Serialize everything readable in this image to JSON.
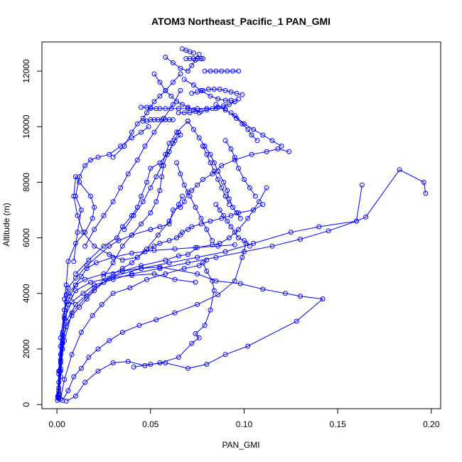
{
  "chart_data": {
    "type": "line",
    "title": "ATOM3 Northeast_Pacific_1 PAN_GMI",
    "xlabel": "PAN_GMI",
    "ylabel": "Altitude (m)",
    "xlim": [
      -0.008,
      0.205
    ],
    "ylim": [
      -150,
      13050
    ],
    "xticks": [
      "0.00",
      "0.05",
      "0.10",
      "0.15",
      "0.20"
    ],
    "xtick_values": [
      0.0,
      0.05,
      0.1,
      0.15,
      0.2
    ],
    "yticks": [
      "0",
      "2000",
      "4000",
      "6000",
      "8000",
      "10000",
      "12000"
    ],
    "ytick_values": [
      0,
      2000,
      4000,
      6000,
      8000,
      10000,
      12000
    ],
    "grid": false,
    "legend": "none",
    "marker": "open-circle",
    "color": "#0000ff",
    "series": [
      {
        "x": [
          0.001,
          0.0005,
          0.001,
          0.001,
          0.0015,
          0.002,
          0.003,
          0.005,
          0.008,
          0.012,
          0.016,
          0.02,
          0.025,
          0.03,
          0.035,
          0.04,
          0.043,
          0.047,
          0.05,
          0.052,
          0.055,
          0.06,
          0.064,
          0.066,
          0.067,
          0.07,
          0.072,
          0.077,
          0.082,
          0.088,
          0.093,
          0.097,
          0.105,
          0.11
        ],
        "y": [
          200,
          300,
          500,
          800,
          1200,
          1800,
          2300,
          2800,
          3200,
          3500,
          3800,
          4100,
          4400,
          4700,
          4900,
          5100,
          5300,
          5500,
          5600,
          5700,
          5800,
          5900,
          6000,
          6100,
          6200,
          6300,
          6400,
          6500,
          6600,
          6700,
          6800,
          6900,
          7000,
          7200
        ]
      },
      {
        "x": [
          0.001,
          0.002,
          0.003,
          0.005,
          0.01,
          0.02,
          0.03,
          0.045,
          0.06,
          0.075,
          0.09,
          0.105,
          0.125,
          0.14,
          0.16,
          0.165,
          0.183,
          0.196,
          0.197
        ],
        "y": [
          250,
          1000,
          2000,
          3000,
          3600,
          4200,
          4600,
          4900,
          5100,
          5300,
          5500,
          5800,
          6200,
          6400,
          6600,
          6750,
          8450,
          8000,
          7600
        ]
      },
      {
        "x": [
          0.0005,
          0.001,
          0.002,
          0.004,
          0.008,
          0.014,
          0.02,
          0.03,
          0.04,
          0.055,
          0.07,
          0.085,
          0.1,
          0.115,
          0.13,
          0.145,
          0.16,
          0.163
        ],
        "y": [
          300,
          1100,
          2100,
          3100,
          3700,
          4000,
          4300,
          4500,
          4700,
          4900,
          5100,
          5300,
          5500,
          5700,
          5950,
          6250,
          6600,
          7900
        ]
      },
      {
        "x": [
          0.001,
          0.002,
          0.004,
          0.008,
          0.016,
          0.025,
          0.035,
          0.045,
          0.058,
          0.065,
          0.07,
          0.075,
          0.083,
          0.087,
          0.092,
          0.097,
          0.102,
          0.108,
          0.112
        ],
        "y": [
          350,
          1300,
          2300,
          3300,
          3900,
          4400,
          4800,
          5000,
          5200,
          5350,
          5400,
          5650,
          5750,
          5800,
          6000,
          6300,
          6700,
          7300,
          7800
        ]
      },
      {
        "x": [
          0.001,
          0.002,
          0.003,
          0.004,
          0.005,
          0.006,
          0.01,
          0.016,
          0.028,
          0.033,
          0.04,
          0.05,
          0.055,
          0.06,
          0.062,
          0.066,
          0.068,
          0.07,
          0.072,
          0.075,
          0.078,
          0.083,
          0.088,
          0.095,
          0.104,
          0.112,
          0.118,
          0.124
        ],
        "y": [
          400,
          1500,
          2500,
          3400,
          3950,
          4200,
          4550,
          5000,
          5700,
          5900,
          6100,
          6300,
          6400,
          6500,
          7000,
          7100,
          7300,
          7650,
          7700,
          7900,
          8100,
          8300,
          8600,
          8800,
          9000,
          9100,
          9200,
          9100
        ]
      },
      {
        "x": [
          0.0003,
          0.001,
          0.002,
          0.003,
          0.004,
          0.005,
          0.006,
          0.01,
          0.015,
          0.025,
          0.035,
          0.045,
          0.055,
          0.075,
          0.085,
          0.098,
          0.11,
          0.122,
          0.13,
          0.142,
          0.128,
          0.102,
          0.09,
          0.08,
          0.07,
          0.058,
          0.05,
          0.041
        ],
        "y": [
          150,
          350,
          1200,
          2200,
          3200,
          3700,
          4000,
          4300,
          4500,
          4700,
          4800,
          4900,
          4950,
          4700,
          4450,
          4350,
          4150,
          4000,
          3900,
          3800,
          3000,
          2100,
          1800,
          1450,
          1300,
          1500,
          1450,
          1350
        ]
      },
      {
        "x": [
          0.0005,
          0.001,
          0.002,
          0.003,
          0.006,
          0.01,
          0.018,
          0.028,
          0.04,
          0.052,
          0.063,
          0.074
        ],
        "y": [
          250,
          600,
          1600,
          2600,
          3600,
          4100,
          4400,
          4550,
          4650,
          4700,
          4500,
          4400
        ]
      },
      {
        "x": [
          0.005,
          0.01,
          0.015,
          0.022,
          0.03,
          0.038,
          0.047,
          0.055,
          0.065,
          0.072,
          0.076,
          0.074,
          0.079,
          0.082,
          0.084,
          0.083,
          0.08,
          0.078
        ],
        "y": [
          120,
          300,
          800,
          1200,
          1500,
          1550,
          1400,
          1500,
          1700,
          2200,
          2400,
          2550,
          2850,
          3400,
          4100,
          4450,
          4800,
          5100
        ]
      },
      {
        "x": [
          0.002,
          0.004,
          0.008,
          0.013,
          0.019,
          0.024,
          0.03,
          0.039,
          0.048,
          0.058,
          0.068,
          0.076,
          0.08
        ],
        "y": [
          200,
          900,
          1800,
          2600,
          3200,
          3600,
          4000,
          4200,
          4500,
          4700,
          4900,
          5000,
          5200
        ]
      },
      {
        "x": [
          0.003,
          0.006,
          0.009,
          0.013,
          0.017,
          0.022,
          0.028,
          0.035,
          0.044,
          0.053,
          0.063,
          0.075,
          0.086,
          0.095,
          0.099,
          0.101
        ],
        "y": [
          150,
          500,
          1000,
          1300,
          1700,
          2000,
          2300,
          2600,
          2850,
          3050,
          3300,
          3600,
          3950,
          4450,
          5300,
          5800
        ]
      },
      {
        "x": [
          0.0005,
          0.001,
          0.002,
          0.004,
          0.007,
          0.01,
          0.013,
          0.016,
          0.021,
          0.03,
          0.04,
          0.052,
          0.063,
          0.074,
          0.086,
          0.095
        ],
        "y": [
          300,
          1200,
          2400,
          3400,
          3900,
          4300,
          4600,
          4900,
          5100,
          5300,
          5450,
          5550,
          5600,
          5650,
          5700,
          5750
        ]
      },
      {
        "x": [
          0.004,
          0.005,
          0.006,
          0.01,
          0.015,
          0.019,
          0.02,
          0.018,
          0.012,
          0.01,
          0.009,
          0.011,
          0.014,
          0.02,
          0.028,
          0.035,
          0.043,
          0.048,
          0.054,
          0.06,
          0.065,
          0.067
        ],
        "y": [
          3800,
          4300,
          5150,
          5800,
          6200,
          6700,
          7100,
          7500,
          8000,
          8200,
          7500,
          6800,
          6200,
          5700,
          5400,
          5200,
          5300,
          5600,
          6100,
          6600,
          7200,
          7500
        ]
      },
      {
        "x": [
          0.01,
          0.017,
          0.025,
          0.032,
          0.035,
          0.04,
          0.043,
          0.045,
          0.048,
          0.05,
          0.055,
          0.06,
          0.063,
          0.066
        ],
        "y": [
          4700,
          5200,
          5700,
          6000,
          6400,
          6800,
          7100,
          7500,
          8000,
          8500,
          8700,
          9100,
          9500,
          9700
        ]
      },
      {
        "x": [
          0.025,
          0.03,
          0.035,
          0.04,
          0.045,
          0.05,
          0.053,
          0.055,
          0.056,
          0.057,
          0.059,
          0.062,
          0.065
        ],
        "y": [
          4600,
          5100,
          5700,
          6100,
          6500,
          6900,
          7300,
          7700,
          8200,
          8600,
          9000,
          9400,
          9800
        ]
      },
      {
        "x": [
          0.036,
          0.041,
          0.046,
          0.05,
          0.053,
          0.056,
          0.058,
          0.06,
          0.064,
          0.07
        ],
        "y": [
          6300,
          6800,
          7300,
          7800,
          8200,
          8600,
          9000,
          9400,
          9800,
          10200
        ]
      },
      {
        "x": [
          0.03,
          0.036,
          0.04,
          0.043,
          0.046,
          0.048,
          0.05,
          0.052,
          0.055,
          0.058,
          0.062,
          0.066
        ],
        "y": [
          8900,
          9300,
          9800,
          10100,
          10300,
          10500,
          10700,
          10900,
          11100,
          11300,
          11600,
          11900
        ]
      },
      {
        "x": [
          0.015,
          0.02,
          0.025,
          0.03,
          0.034,
          0.038,
          0.043,
          0.047,
          0.052,
          0.057,
          0.062,
          0.066
        ],
        "y": [
          5700,
          6300,
          6800,
          7300,
          7800,
          8300,
          8800,
          9300,
          9800,
          10300,
          10800,
          11300
        ]
      },
      {
        "x": [
          0.009,
          0.011,
          0.013,
          0.01,
          0.012,
          0.015,
          0.018,
          0.022,
          0.028,
          0.034,
          0.04,
          0.045,
          0.049
        ],
        "y": [
          5150,
          6200,
          7000,
          7500,
          8200,
          8600,
          8800,
          8900,
          9000,
          9300,
          9600,
          9800,
          10000
        ]
      },
      {
        "x": [
          0.045,
          0.048,
          0.05,
          0.053,
          0.055,
          0.058,
          0.061,
          0.065,
          0.07,
          0.075,
          0.08,
          0.085,
          0.09
        ],
        "y": [
          10700,
          10700,
          10650,
          10650,
          10650,
          10650,
          10650,
          10650,
          10650,
          10650,
          10650,
          10650,
          10650
        ]
      },
      {
        "x": [
          0.046,
          0.048,
          0.05,
          0.052,
          0.054,
          0.056,
          0.058,
          0.06,
          0.062
        ],
        "y": [
          10200,
          10200,
          10250,
          10250,
          10250,
          10250,
          10250,
          10250,
          10250
        ]
      },
      {
        "x": [
          0.065,
          0.068,
          0.071,
          0.074,
          0.077,
          0.08,
          0.083,
          0.086,
          0.089,
          0.092,
          0.095,
          0.097
        ],
        "y": [
          10500,
          10500,
          10500,
          10550,
          10550,
          10600,
          10650,
          10700,
          10750,
          10800,
          10900,
          11000
        ]
      },
      {
        "x": [
          0.072,
          0.075,
          0.078,
          0.081,
          0.084,
          0.087,
          0.09,
          0.093,
          0.096,
          0.099
        ],
        "y": [
          11200,
          11250,
          11300,
          11350,
          11350,
          11350,
          11300,
          11250,
          11200,
          11150
        ]
      },
      {
        "x": [
          0.079,
          0.082,
          0.085,
          0.088,
          0.091,
          0.094,
          0.097
        ],
        "y": [
          12000,
          12000,
          12000,
          12000,
          12000,
          12000,
          12000
        ]
      },
      {
        "x": [
          0.067,
          0.069,
          0.071,
          0.073
        ],
        "y": [
          12800,
          12750,
          12700,
          12650
        ]
      },
      {
        "x": [
          0.069,
          0.071,
          0.073,
          0.075,
          0.077,
          0.078
        ],
        "y": [
          12450,
          12450,
          12450,
          12450,
          12450,
          12450
        ]
      },
      {
        "x": [
          0.058,
          0.062,
          0.066,
          0.07,
          0.072,
          0.074,
          0.076
        ],
        "y": [
          12500,
          12300,
          12100,
          12000,
          12200,
          12400,
          12600
        ]
      },
      {
        "x": [
          0.068,
          0.073,
          0.077,
          0.082,
          0.086,
          0.09,
          0.093,
          0.095
        ],
        "y": [
          11700,
          11500,
          11300,
          11100,
          11000,
          10950,
          10950,
          10900
        ]
      },
      {
        "x": [
          0.052,
          0.055,
          0.058,
          0.061,
          0.064,
          0.067,
          0.07,
          0.073,
          0.076
        ],
        "y": [
          11900,
          11600,
          11300,
          11100,
          10900,
          10800,
          10700,
          10600,
          10500
        ]
      },
      {
        "x": [
          0.085,
          0.09,
          0.095,
          0.1,
          0.105,
          0.11,
          0.115,
          0.12
        ],
        "y": [
          10800,
          10600,
          10400,
          10100,
          9900,
          9700,
          9500,
          9300
        ]
      },
      {
        "x": [
          0.09,
          0.093,
          0.095,
          0.097,
          0.1,
          0.103,
          0.106
        ],
        "y": [
          9500,
          9200,
          8900,
          8500,
          8100,
          7800,
          7500
        ]
      },
      {
        "x": [
          0.086,
          0.089,
          0.091,
          0.092,
          0.094,
          0.096,
          0.098
        ],
        "y": [
          8400,
          8000,
          7700,
          7400,
          7100,
          6900,
          6700
        ]
      },
      {
        "x": [
          0.078,
          0.08,
          0.082,
          0.084,
          0.086,
          0.088,
          0.09,
          0.092
        ],
        "y": [
          9300,
          9000,
          8700,
          8400,
          8100,
          7800,
          7500,
          7200
        ]
      },
      {
        "x": [
          0.085,
          0.087,
          0.089,
          0.091,
          0.093,
          0.095,
          0.097,
          0.1,
          0.103
        ],
        "y": [
          7200,
          7000,
          6800,
          6600,
          6400,
          6200,
          6000,
          5900,
          5700
        ]
      },
      {
        "x": [
          0.064,
          0.066,
          0.068,
          0.071,
          0.074,
          0.077,
          0.08,
          0.083
        ],
        "y": [
          8700,
          8300,
          7900,
          7500,
          7100,
          6700,
          6300,
          5900
        ]
      },
      {
        "x": [
          0.07,
          0.073,
          0.076,
          0.079,
          0.082,
          0.084,
          0.086
        ],
        "y": [
          10200,
          9900,
          9600,
          9300,
          9000,
          8700,
          8400
        ]
      },
      {
        "x": [
          0.093,
          0.096,
          0.099,
          0.102,
          0.104,
          0.107
        ],
        "y": [
          10500,
          10300,
          10100,
          9900,
          9700,
          9500
        ]
      }
    ]
  }
}
